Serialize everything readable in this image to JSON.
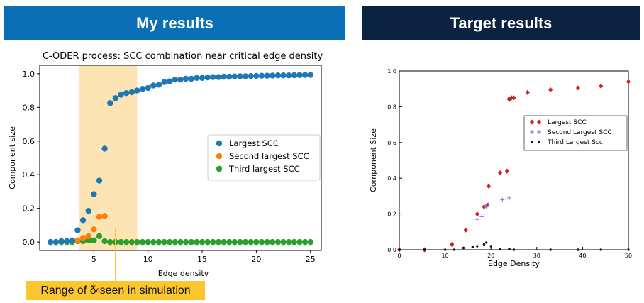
{
  "banners": {
    "left": "My results",
    "right": "Target results"
  },
  "callout": {
    "prefix": "Range of δ",
    "subscript": "c",
    "suffix": " seen in simulation",
    "color": "#fcc62f"
  },
  "chart_data": [
    {
      "type": "scatter",
      "title": "C-ODER process: SCC combination near critical edge density",
      "xlabel": "Edge density",
      "ylabel": "Component size",
      "xlim": [
        0,
        26
      ],
      "ylim": [
        -0.05,
        1.05
      ],
      "xticks": [
        5,
        10,
        15,
        20,
        25
      ],
      "yticks": [
        0.0,
        0.2,
        0.4,
        0.6,
        0.8,
        1.0
      ],
      "xtick_labels": [
        "5",
        "10",
        "15",
        "20",
        "25"
      ],
      "ytick_labels": [
        "0.0",
        "0.2",
        "0.4",
        "0.6",
        "0.8",
        "1.0"
      ],
      "highlight_range": [
        3.6,
        9.0
      ],
      "highlight_color": "#fce4b4",
      "legend_position": "center-right",
      "series": [
        {
          "name": "Largest SCC",
          "color": "#1f77b4",
          "x": [
            1.0,
            1.5,
            2.0,
            2.5,
            3.0,
            3.5,
            4.0,
            4.5,
            5.0,
            5.5,
            6.0,
            6.5,
            7.0,
            7.5,
            8.0,
            8.5,
            9.0,
            9.5,
            10.0,
            10.5,
            11.0,
            11.5,
            12.0,
            12.5,
            13.0,
            13.5,
            14.0,
            14.5,
            15.0,
            15.5,
            16.0,
            16.5,
            17.0,
            17.5,
            18.0,
            18.5,
            19.0,
            19.5,
            20.0,
            20.5,
            21.0,
            21.5,
            22.0,
            22.5,
            23.0,
            23.5,
            24.0,
            24.5,
            25.0
          ],
          "y": [
            0.0,
            0.0,
            0.005,
            0.005,
            0.01,
            0.07,
            0.13,
            0.185,
            0.285,
            0.365,
            0.555,
            0.825,
            0.855,
            0.875,
            0.885,
            0.89,
            0.9,
            0.91,
            0.915,
            0.93,
            0.935,
            0.95,
            0.955,
            0.965,
            0.965,
            0.97,
            0.97,
            0.975,
            0.975,
            0.978,
            0.98,
            0.98,
            0.982,
            0.982,
            0.984,
            0.985,
            0.985,
            0.986,
            0.987,
            0.988,
            0.988,
            0.989,
            0.99,
            0.99,
            0.99,
            0.991,
            0.992,
            0.993,
            0.993
          ]
        },
        {
          "name": "Second largest SCC",
          "color": "#ff7f0e",
          "x": [
            3.5,
            4.0,
            4.5,
            5.0,
            5.5,
            6.0
          ],
          "y": [
            0.01,
            0.025,
            0.035,
            0.075,
            0.15,
            0.155
          ]
        },
        {
          "name": "Third largest SCC",
          "color": "#2ca02c",
          "x": [
            1.0,
            1.5,
            2.0,
            2.5,
            3.0,
            3.5,
            4.0,
            4.5,
            5.0,
            5.5,
            6.0,
            6.5,
            7.0,
            7.5,
            8.0,
            8.5,
            9.0,
            9.5,
            10.0,
            10.5,
            11.0,
            11.5,
            12.0,
            12.5,
            13.0,
            13.5,
            14.0,
            14.5,
            15.0,
            15.5,
            16.0,
            16.5,
            17.0,
            17.5,
            18.0,
            18.5,
            19.0,
            19.5,
            20.0,
            20.5,
            21.0,
            21.5,
            22.0,
            22.5,
            23.0,
            23.5,
            24.0,
            24.5,
            25.0
          ],
          "y": [
            0,
            0,
            0,
            0,
            0,
            0.005,
            0.005,
            0.01,
            0.01,
            0.035,
            0.005,
            0,
            0,
            0,
            0,
            0,
            0,
            0,
            0,
            0,
            0,
            0,
            0,
            0,
            0,
            0,
            0,
            0,
            0,
            0,
            0,
            0,
            0,
            0,
            0,
            0,
            0,
            0,
            0,
            0,
            0,
            0,
            0,
            0,
            0,
            0,
            0,
            0,
            0
          ]
        }
      ]
    },
    {
      "type": "scatter",
      "title": "",
      "xlabel": "Edge Density",
      "ylabel": "Component Size",
      "xlim": [
        0,
        50
      ],
      "ylim": [
        0,
        1.0
      ],
      "xticks": [
        0,
        10,
        20,
        30,
        40,
        50
      ],
      "yticks": [
        0.0,
        0.2,
        0.4,
        0.6,
        0.8,
        1.0
      ],
      "xtick_labels": [
        "0",
        "10",
        "20",
        "30",
        "40",
        "50"
      ],
      "ytick_labels": [
        "0.0",
        "0.2",
        "0.4",
        "0.6",
        "0.8",
        "1.0"
      ],
      "legend_position": "center-right",
      "series": [
        {
          "name": "Largest SCC",
          "color": "#cc2222",
          "marker": "diamond",
          "x": [
            0,
            5.5,
            11.5,
            14.5,
            17,
            18.5,
            19.2,
            19.5,
            22,
            23.5,
            24,
            24,
            24.5,
            25,
            28,
            33,
            39,
            44,
            50
          ],
          "y": [
            0,
            0,
            0.03,
            0.11,
            0.2,
            0.24,
            0.25,
            0.355,
            0.43,
            0.44,
            0.845,
            0.84,
            0.85,
            0.85,
            0.88,
            0.895,
            0.905,
            0.915,
            0.94
          ]
        },
        {
          "name": "Second Largest SCC",
          "color": "#7777ee",
          "marker": "plus",
          "x": [
            17,
            18,
            18.5,
            19,
            19.5,
            22.5,
            24
          ],
          "y": [
            0.17,
            0.185,
            0.2,
            0.24,
            0.255,
            0.28,
            0.29
          ]
        },
        {
          "name": "Third Largest Scc",
          "color": "#111111",
          "marker": "dot",
          "x": [
            0,
            5.5,
            10,
            12,
            14,
            16,
            17,
            18.5,
            19,
            20,
            22,
            24,
            25,
            33,
            39,
            44,
            50
          ],
          "y": [
            0,
            0,
            0,
            0,
            0.01,
            0.015,
            0.02,
            0.03,
            0.04,
            0.02,
            0.005,
            0.005,
            0,
            0,
            0,
            0,
            0
          ]
        }
      ]
    }
  ]
}
